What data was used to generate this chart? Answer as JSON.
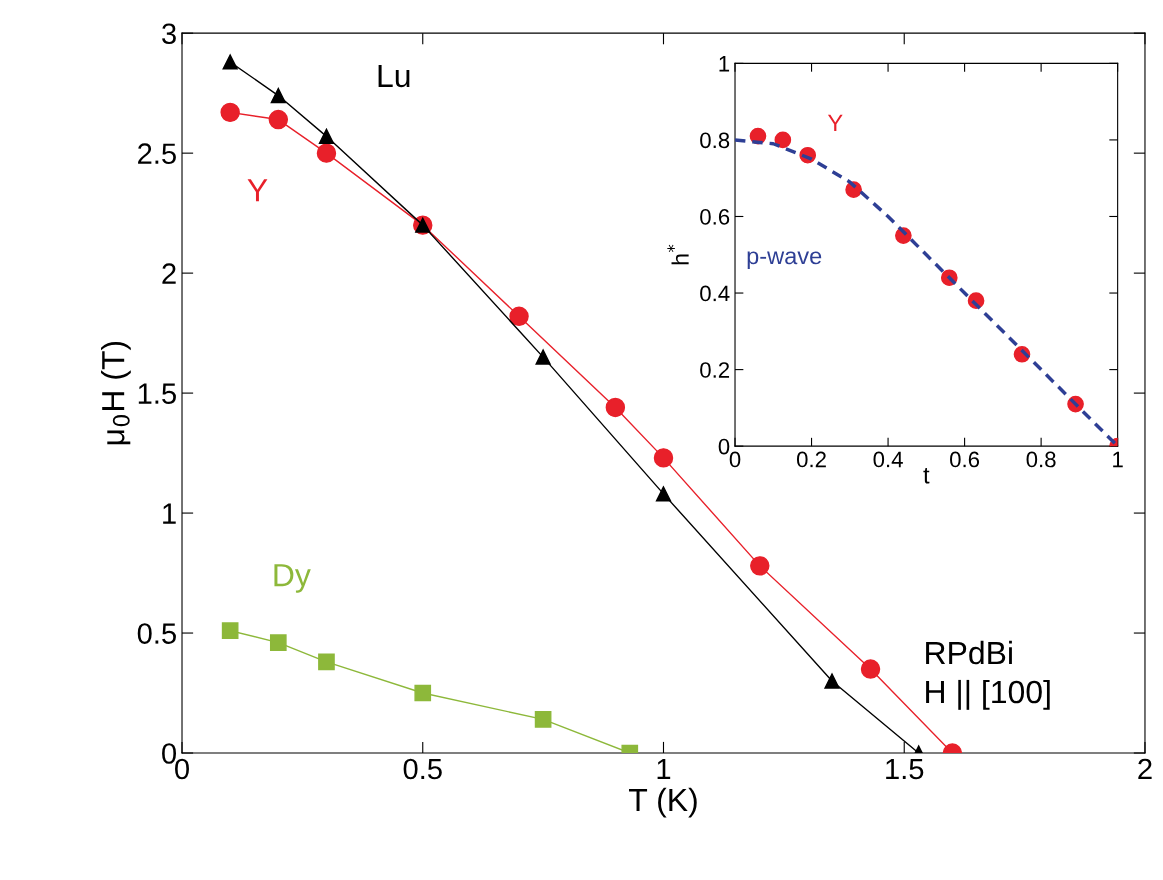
{
  "chart_data": [
    {
      "type": "line",
      "xlabel": "T (K)",
      "ylabel": "μ$_{0}$H (T)",
      "xlim": [
        0,
        2
      ],
      "ylim": [
        0,
        3
      ],
      "xticks": [
        0,
        0.5,
        1,
        1.5,
        2
      ],
      "yticks": [
        0,
        0.5,
        1,
        1.5,
        2,
        2.5,
        3
      ],
      "grid": false,
      "line_style": "solid",
      "series": [
        {
          "name": "Lu",
          "color": "#000000",
          "marker": "triangle",
          "x": [
            0.1,
            0.2,
            0.3,
            0.5,
            0.75,
            1.0,
            1.35,
            1.53
          ],
          "values": [
            2.88,
            2.74,
            2.57,
            2.2,
            1.65,
            1.08,
            0.3,
            0
          ]
        },
        {
          "name": "Y",
          "color": "#e8202a",
          "marker": "circle",
          "x": [
            0.1,
            0.2,
            0.3,
            0.5,
            0.7,
            0.9,
            1.0,
            1.2,
            1.43,
            1.6
          ],
          "values": [
            2.67,
            2.64,
            2.5,
            2.2,
            1.82,
            1.44,
            1.23,
            0.78,
            0.35,
            0
          ]
        },
        {
          "name": "Dy",
          "color": "#8db83a",
          "marker": "square",
          "x": [
            0.1,
            0.2,
            0.3,
            0.5,
            0.75,
            0.93
          ],
          "values": [
            0.51,
            0.46,
            0.38,
            0.25,
            0.14,
            0
          ]
        }
      ],
      "annotations": [
        "RPdBi\nH || [100]"
      ]
    },
    {
      "type": "scatter",
      "xlabel": "t",
      "ylabel": "h$^{*}$",
      "xlim": [
        0,
        1
      ],
      "ylim": [
        0,
        1
      ],
      "xticks": [
        0,
        0.2,
        0.4,
        0.6,
        0.8,
        1
      ],
      "yticks": [
        0,
        0.2,
        0.4,
        0.6,
        0.8,
        1
      ],
      "grid": false,
      "series": [
        {
          "name": "Y",
          "color": "#e8202a",
          "marker": "circle",
          "x": [
            0.06,
            0.125,
            0.19,
            0.31,
            0.44,
            0.56,
            0.63,
            0.75,
            0.89,
            1.0
          ],
          "values": [
            0.81,
            0.8,
            0.76,
            0.67,
            0.55,
            0.44,
            0.38,
            0.24,
            0.11,
            0
          ]
        },
        {
          "name": "p-wave",
          "type": "line",
          "line_style": "dashed",
          "color": "#2e3f95",
          "marker": "none",
          "x": [
            0,
            0.1,
            0.2,
            0.3,
            0.4,
            0.5,
            0.6,
            0.7,
            0.8,
            0.9,
            1.0
          ],
          "values": [
            0.8,
            0.79,
            0.75,
            0.69,
            0.6,
            0.5,
            0.4,
            0.3,
            0.2,
            0.1,
            0
          ]
        }
      ]
    }
  ]
}
